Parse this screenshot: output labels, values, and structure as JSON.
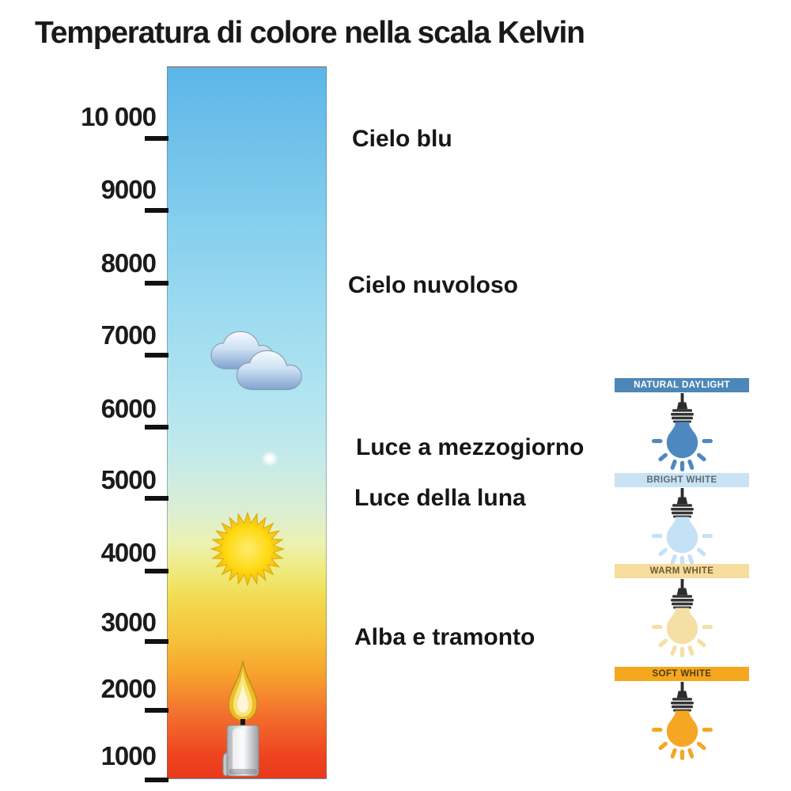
{
  "title": "Temperatura di colore nella scala Kelvin",
  "kelvin_scale": {
    "unit_name": "Kelvin",
    "tick_labels": [
      "10 000",
      "9000",
      "8000",
      "7000",
      "6000",
      "5000",
      "4000",
      "3000",
      "2000",
      "1000"
    ],
    "gradient_stops": [
      "#5cb6e9",
      "#6ec0ea",
      "#87d0ee",
      "#9fdcf0",
      "#b0e4f0",
      "#bfe9ec",
      "#cdece2",
      "#ddefcf",
      "#ecf2b0",
      "#f0e76e",
      "#f2d94e",
      "#f6c13a",
      "#f7a52d",
      "#f3702e",
      "#ee431f",
      "#e93a1c"
    ]
  },
  "annotations": [
    {
      "label": "Cielo blu"
    },
    {
      "label": "Cielo nuvoloso"
    },
    {
      "label": "Luce a mezzogiorno"
    },
    {
      "label": "Luce della luna"
    },
    {
      "label": "Alba e tramonto"
    }
  ],
  "bar_icons": [
    {
      "name": "clouds-icon"
    },
    {
      "name": "moon-icon"
    },
    {
      "name": "sun-icon"
    },
    {
      "name": "candle-icon"
    }
  ],
  "bulb_sections": [
    {
      "label": "NATURAL DAYLIGHT",
      "band_color": "#4d87b8",
      "bulb_color": "#4e88c0",
      "label_color": "#ffffff",
      "icon": "light-bulb-icon"
    },
    {
      "label": "BRIGHT WHITE",
      "band_color": "#c9e3f4",
      "bulb_color": "#c5e1f6",
      "label_color": "#5c6b74",
      "icon": "light-bulb-icon"
    },
    {
      "label": "WARM WHITE",
      "band_color": "#f6dc9d",
      "bulb_color": "#f4dfa5",
      "label_color": "#6d5b35",
      "icon": "light-bulb-icon"
    },
    {
      "label": "SOFT WHITE",
      "band_color": "#f5a720",
      "bulb_color": "#f5a724",
      "label_color": "#4f3c0c",
      "icon": "light-bulb-icon"
    }
  ]
}
